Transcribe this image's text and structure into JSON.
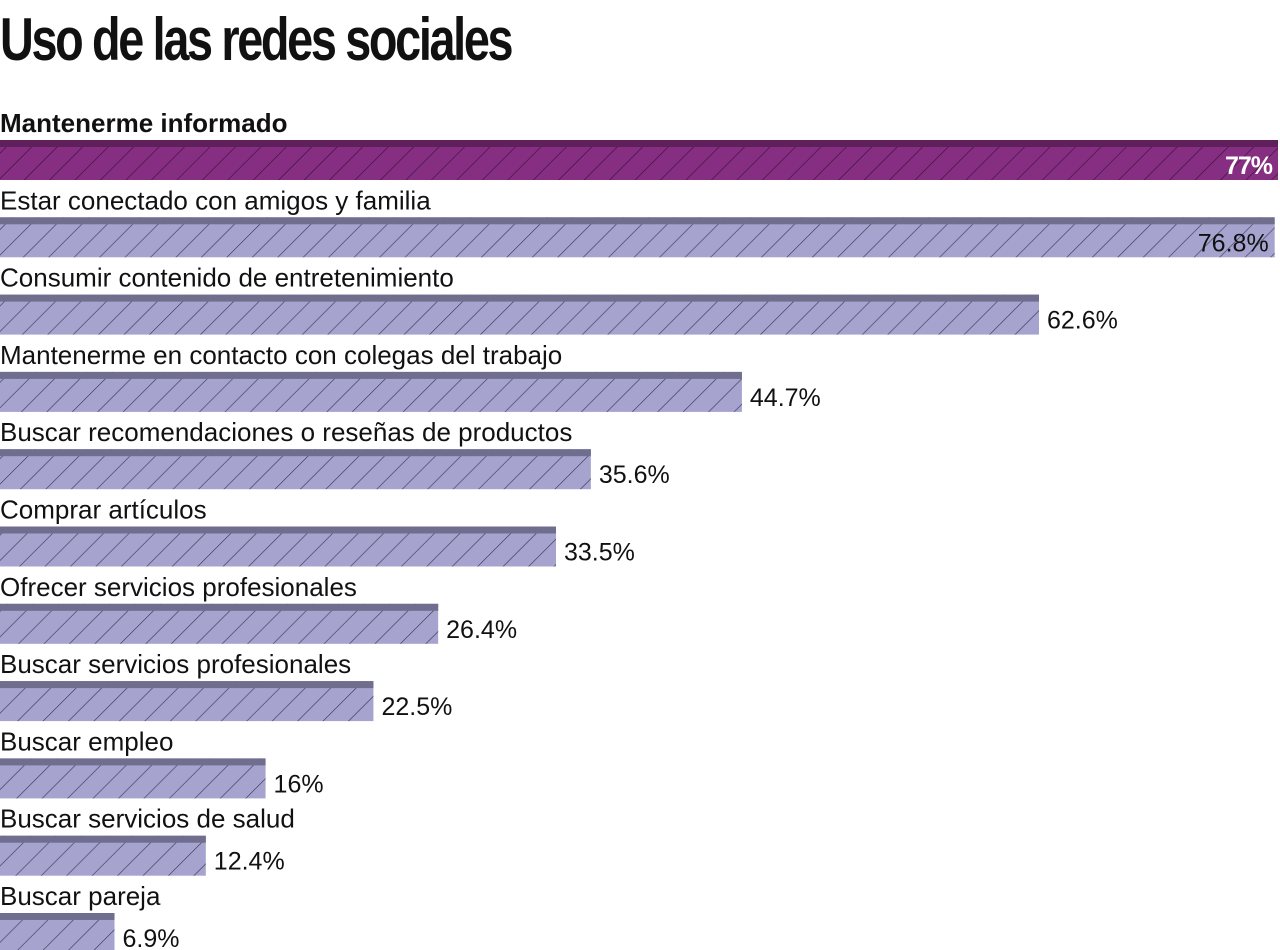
{
  "title": "Uso de las redes sociales",
  "chart_data": {
    "type": "bar",
    "orientation": "horizontal",
    "categories": [
      "Mantenerme informado",
      "Estar conectado con amigos y familia",
      "Consumir contenido de entretenimiento",
      "Mantenerme en contacto con colegas del trabajo",
      "Buscar recomendaciones o reseñas de productos",
      "Comprar artículos",
      "Ofrecer servicios profesionales",
      "Buscar servicios profesionales",
      "Buscar empleo",
      "Buscar servicios de salud",
      "Buscar pareja"
    ],
    "values": [
      77,
      76.8,
      62.6,
      44.7,
      35.6,
      33.5,
      26.4,
      22.5,
      16,
      12.4,
      6.9
    ],
    "value_labels": [
      "77%",
      "76.8%",
      "62.6%",
      "44.7%",
      "35.6%",
      "33.5%",
      "26.4%",
      "22.5%",
      "16%",
      "12.4%",
      "6.9%"
    ],
    "title": "Uso de las redes sociales",
    "xlabel": "",
    "ylabel": "",
    "xlim": [
      0,
      77
    ],
    "grid": false,
    "legend": "none",
    "highlight_index": 0,
    "colors": {
      "highlight": "#862f82",
      "highlight_top": "#5e1f5a",
      "bar": "#a6a4cf",
      "bar_top": "#6f6e8e",
      "hatch": "#3c3b58",
      "highlight_hatch": "#3e0f3a"
    }
  }
}
